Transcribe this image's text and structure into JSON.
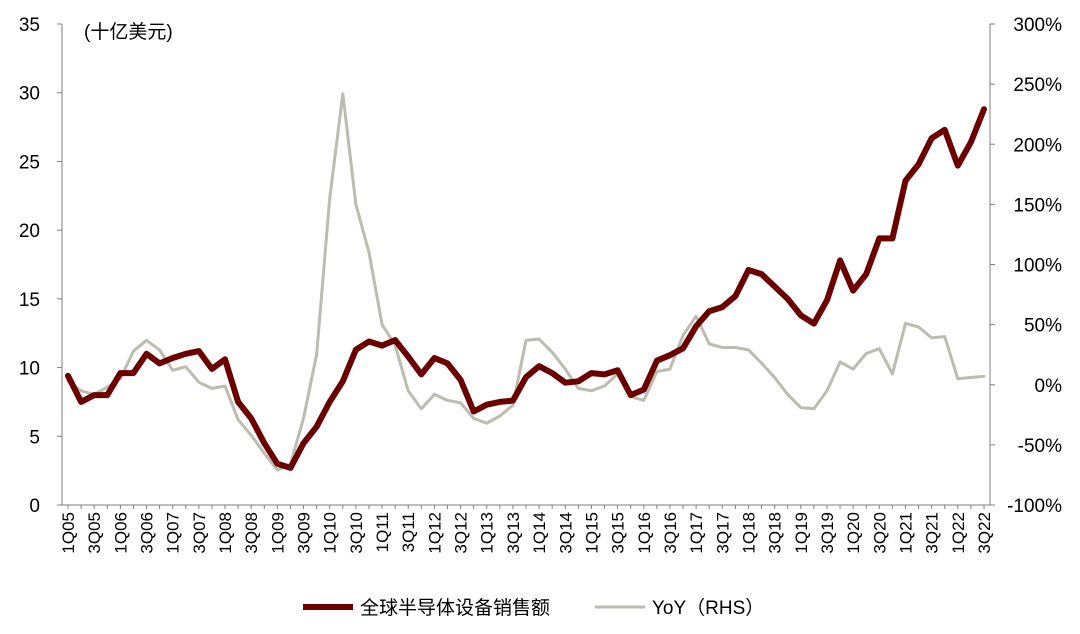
{
  "chart_data": {
    "type": "line",
    "title": "",
    "unit_label": "(十亿美元)",
    "xlabel": "",
    "ylabel": "",
    "ylim": [
      0,
      35
    ],
    "y_ticks": [
      0,
      5,
      10,
      15,
      20,
      25,
      30,
      35
    ],
    "y2lim": [
      -100,
      300
    ],
    "y2_ticks": [
      "-100%",
      "-50%",
      "0%",
      "50%",
      "100%",
      "150%",
      "200%",
      "250%",
      "300%"
    ],
    "y2_values": [
      -100,
      -50,
      0,
      50,
      100,
      150,
      200,
      250,
      300
    ],
    "grid": false,
    "legend_position": "bottom",
    "categories": [
      "1Q05",
      "2Q05",
      "3Q05",
      "4Q05",
      "1Q06",
      "2Q06",
      "3Q06",
      "4Q06",
      "1Q07",
      "2Q07",
      "3Q07",
      "4Q07",
      "1Q08",
      "2Q08",
      "3Q08",
      "4Q08",
      "1Q09",
      "2Q09",
      "3Q09",
      "4Q09",
      "1Q10",
      "2Q10",
      "3Q10",
      "4Q10",
      "1Q11",
      "2Q11",
      "3Q11",
      "4Q11",
      "1Q12",
      "2Q12",
      "3Q12",
      "4Q12",
      "1Q13",
      "2Q13",
      "3Q13",
      "4Q13",
      "1Q14",
      "2Q14",
      "3Q14",
      "4Q14",
      "1Q15",
      "2Q15",
      "3Q15",
      "4Q15",
      "1Q16",
      "2Q16",
      "3Q16",
      "4Q16",
      "1Q17",
      "2Q17",
      "3Q17",
      "4Q17",
      "1Q18",
      "2Q18",
      "3Q18",
      "4Q18",
      "1Q19",
      "2Q19",
      "3Q19",
      "4Q19",
      "1Q20",
      "2Q20",
      "3Q20",
      "4Q20",
      "1Q21",
      "2Q21",
      "3Q21",
      "4Q21",
      "1Q22",
      "2Q22",
      "3Q22"
    ],
    "x_tick_labels": [
      "1Q05",
      "3Q05",
      "1Q06",
      "3Q06",
      "1Q07",
      "3Q07",
      "1Q08",
      "3Q08",
      "1Q09",
      "3Q09",
      "1Q10",
      "3Q10",
      "1Q11",
      "3Q11",
      "1Q12",
      "3Q12",
      "1Q13",
      "3Q13",
      "1Q14",
      "3Q14",
      "1Q15",
      "3Q15",
      "1Q16",
      "3Q16",
      "1Q17",
      "3Q17",
      "1Q18",
      "3Q18",
      "1Q19",
      "3Q19",
      "1Q20",
      "3Q20",
      "1Q21",
      "3Q21",
      "1Q22",
      "3Q22"
    ],
    "series": [
      {
        "name": "全球半导体设备销售额",
        "axis": "left",
        "color": "#6b0000",
        "values": [
          9.4,
          7.5,
          8.0,
          8.0,
          9.6,
          9.6,
          11.0,
          10.3,
          10.7,
          11.0,
          11.2,
          9.9,
          10.6,
          7.5,
          6.3,
          4.5,
          3.0,
          2.7,
          4.5,
          5.7,
          7.5,
          9.0,
          11.3,
          11.9,
          11.6,
          12.0,
          10.8,
          9.5,
          10.7,
          10.3,
          9.1,
          6.8,
          7.3,
          7.5,
          7.6,
          9.3,
          10.1,
          9.6,
          8.9,
          9.0,
          9.6,
          9.5,
          9.8,
          8.0,
          8.4,
          10.5,
          10.9,
          11.4,
          13.0,
          14.1,
          14.4,
          15.2,
          17.1,
          16.8,
          15.9,
          15.0,
          13.8,
          13.2,
          14.9,
          17.8,
          15.6,
          16.8,
          19.4,
          19.4,
          23.6,
          24.8,
          26.7,
          27.3,
          24.7,
          26.4,
          28.8
        ]
      },
      {
        "name": "YoY（RHS）",
        "axis": "right",
        "color": "#bcbcb0",
        "values": [
          3,
          -5,
          -8,
          -2,
          5,
          28,
          37,
          29,
          12,
          15,
          2,
          -3,
          -1,
          -29,
          -42,
          -57,
          -71,
          -66,
          -28,
          25,
          155,
          242,
          150,
          110,
          50,
          33,
          -5,
          -20,
          -8,
          -13,
          -15,
          -28,
          -32,
          -26,
          -17,
          37,
          38,
          27,
          13,
          -3,
          -5,
          -1,
          9,
          -10,
          -13,
          11,
          13,
          41,
          57,
          34,
          31,
          31,
          29,
          18,
          6,
          -8,
          -19,
          -20,
          -5,
          19,
          13,
          26,
          30,
          9,
          51,
          48,
          39,
          40,
          5,
          6,
          7
        ]
      }
    ]
  }
}
